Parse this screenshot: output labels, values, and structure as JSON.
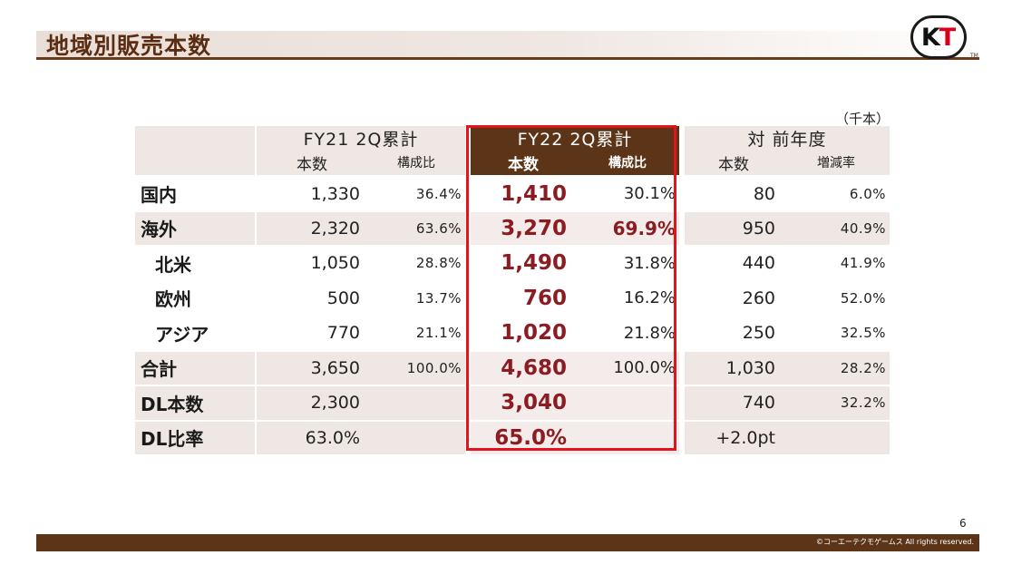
{
  "title": "地域別販売本数",
  "logo": {
    "k": "K",
    "t": "T",
    "tm": "TM"
  },
  "unit_note": "（千本）",
  "header": {
    "fy21": {
      "title": "FY21 2Q累計",
      "units": "本数",
      "ratio": "構成比"
    },
    "fy22": {
      "title": "FY22 2Q累計",
      "units": "本数",
      "ratio": "構成比"
    },
    "yoy": {
      "title": "対 前年度",
      "units": "本数",
      "change": "増減率"
    }
  },
  "rows": [
    {
      "label": "国内",
      "fy21_units": "1,330",
      "fy21_ratio": "36.4%",
      "fy22_units": "1,410",
      "fy22_ratio": "30.1%",
      "yoy_units": "80",
      "yoy_change": "6.0%"
    },
    {
      "label": "海外",
      "fy21_units": "2,320",
      "fy21_ratio": "63.6%",
      "fy22_units": "3,270",
      "fy22_ratio": "69.9%",
      "yoy_units": "950",
      "yoy_change": "40.9%"
    },
    {
      "label": "北米",
      "fy21_units": "1,050",
      "fy21_ratio": "28.8%",
      "fy22_units": "1,490",
      "fy22_ratio": "31.8%",
      "yoy_units": "440",
      "yoy_change": "41.9%"
    },
    {
      "label": "欧州",
      "fy21_units": "500",
      "fy21_ratio": "13.7%",
      "fy22_units": "760",
      "fy22_ratio": "16.2%",
      "yoy_units": "260",
      "yoy_change": "52.0%"
    },
    {
      "label": "アジア",
      "fy21_units": "770",
      "fy21_ratio": "21.1%",
      "fy22_units": "1,020",
      "fy22_ratio": "21.8%",
      "yoy_units": "250",
      "yoy_change": "32.5%"
    },
    {
      "label": "合計",
      "fy21_units": "3,650",
      "fy21_ratio": "100.0%",
      "fy22_units": "4,680",
      "fy22_ratio": "100.0%",
      "yoy_units": "1,030",
      "yoy_change": "28.2%"
    },
    {
      "label": "DL本数",
      "fy21_units": "2,300",
      "fy21_ratio": "",
      "fy22_units": "3,040",
      "fy22_ratio": "",
      "yoy_units": "740",
      "yoy_change": "32.2%"
    },
    {
      "label": "DL比率",
      "fy21_units": "63.0%",
      "fy21_ratio": "",
      "fy22_units": "65.0%",
      "fy22_ratio": "",
      "yoy_units": "+2.0pt",
      "yoy_change": ""
    }
  ],
  "page_number": "6",
  "copyright": "©コーエーテクモゲームス All rights reserved.",
  "colors": {
    "brown": "#5c3518",
    "highlight_red": "#e3141c",
    "value_red": "#8b1c22",
    "shade": "#efe7e3"
  }
}
